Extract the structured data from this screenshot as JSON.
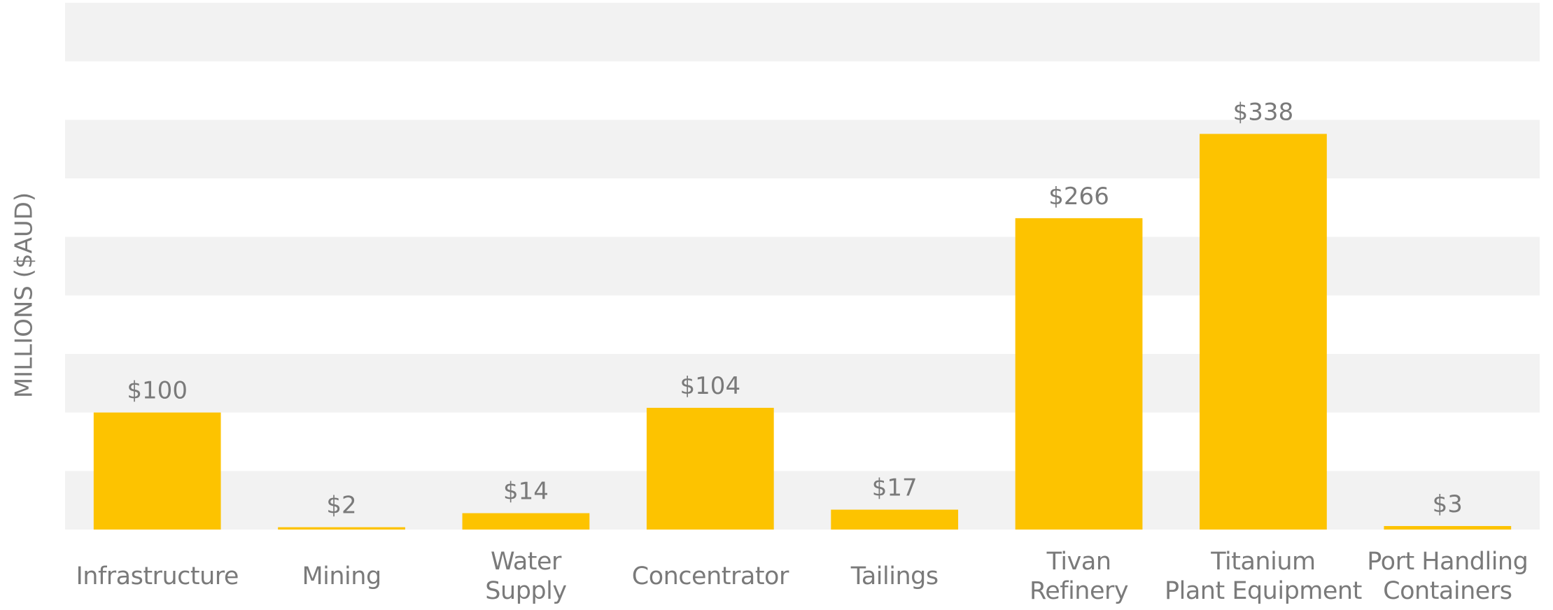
{
  "chart_data": {
    "type": "bar",
    "y_label": "MILLIONS ($AUD)",
    "categories": [
      "Infrastructure",
      "Mining",
      "Water\nSupply",
      "Concentrator",
      "Tailings",
      "Tivan\nRefinery",
      "Titanium\nPlant Equipment",
      "Port Handling\nContainers"
    ],
    "values": [
      100,
      2,
      14,
      104,
      17,
      266,
      338,
      3
    ],
    "value_labels": [
      "$100",
      "$2",
      "$14",
      "$104",
      "$17",
      "$266",
      "$338",
      "$3"
    ],
    "color": "#fdc300",
    "ylim": [
      0,
      450
    ],
    "yticks": [
      0,
      50,
      100,
      150,
      200,
      250,
      300,
      350,
      400,
      450
    ],
    "grid": true
  }
}
